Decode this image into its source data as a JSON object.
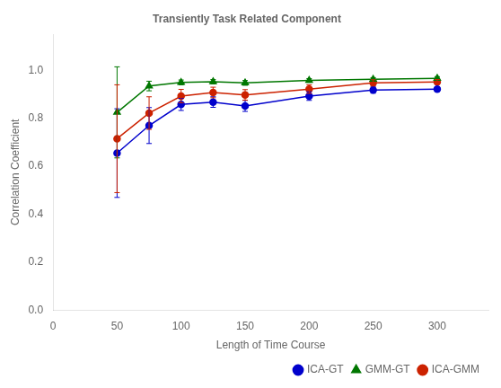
{
  "chart_data": {
    "type": "line",
    "title": "Transiently Task Related Component",
    "x_label": "Length of Time Course",
    "y_label": "Correlation Coefficient",
    "x": [
      50,
      75,
      100,
      125,
      150,
      200,
      250,
      300
    ],
    "series": [
      {
        "name": "ICA-GT",
        "color": "#0000cc",
        "marker": "circle",
        "values": [
          0.655,
          0.77,
          0.858,
          0.868,
          0.852,
          0.893,
          0.918,
          0.922
        ],
        "errors": [
          0.185,
          0.075,
          0.025,
          0.022,
          0.023,
          0.018,
          0.013,
          0.01
        ]
      },
      {
        "name": "GMM-GT",
        "color": "#007700",
        "marker": "triangle",
        "values": [
          0.825,
          0.935,
          0.95,
          0.953,
          0.948,
          0.958,
          0.963,
          0.967
        ],
        "errors": [
          0.19,
          0.02,
          0.01,
          0.009,
          0.01,
          0.008,
          0.007,
          0.007
        ]
      },
      {
        "name": "ICA-GMM",
        "color": "#cc2200",
        "marker": "circle",
        "values": [
          0.715,
          0.822,
          0.893,
          0.908,
          0.898,
          0.922,
          0.948,
          0.952
        ],
        "errors": [
          0.225,
          0.068,
          0.028,
          0.022,
          0.022,
          0.018,
          0.013,
          0.01
        ]
      }
    ],
    "xlim": [
      0,
      340
    ],
    "ylim": [
      0,
      1.15
    ],
    "xticks": [
      0,
      50,
      100,
      150,
      200,
      250,
      300
    ],
    "yticks": [
      {
        "value": 0,
        "label": "0.0"
      },
      0.2,
      0.4,
      0.6,
      0.8,
      {
        "value": 1.0,
        "label": "1.0"
      }
    ],
    "grid": false,
    "legend": "lower right"
  }
}
